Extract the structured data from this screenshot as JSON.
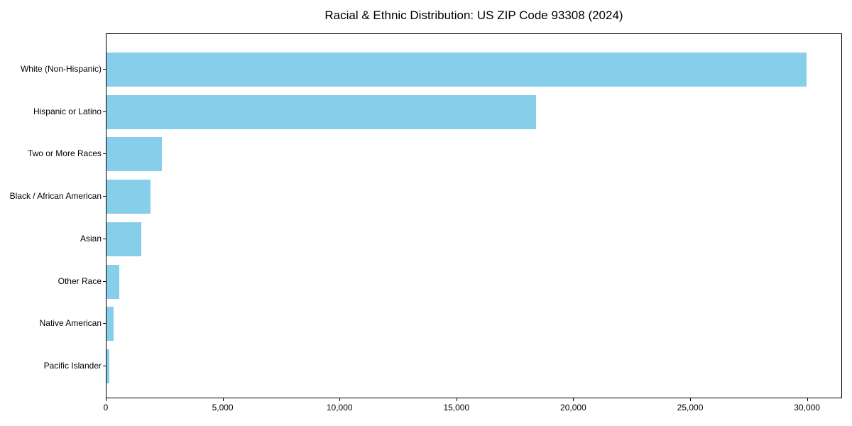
{
  "chart_data": {
    "type": "bar",
    "orientation": "horizontal",
    "title": "Racial & Ethnic Distribution: US ZIP Code 93308 (2024)",
    "categories": [
      "White (Non-Hispanic)",
      "Hispanic or Latino",
      "Two or More Races",
      "Black / African American",
      "Asian",
      "Other Race",
      "Native American",
      "Pacific Islander"
    ],
    "values": [
      30000,
      18400,
      2370,
      1890,
      1500,
      540,
      300,
      130
    ],
    "xlabel": "",
    "ylabel": "",
    "xlim": [
      0,
      31500
    ],
    "x_ticks": [
      0,
      5000,
      10000,
      15000,
      20000,
      25000,
      30000
    ],
    "x_tick_labels": [
      "0",
      "5,000",
      "10,000",
      "15,000",
      "20,000",
      "25,000",
      "30,000"
    ],
    "bar_color": "#87CEEB",
    "background_color": "#ffffff",
    "spine_color": "#000000",
    "text_color": "#000000",
    "grid": false,
    "legend": false
  }
}
